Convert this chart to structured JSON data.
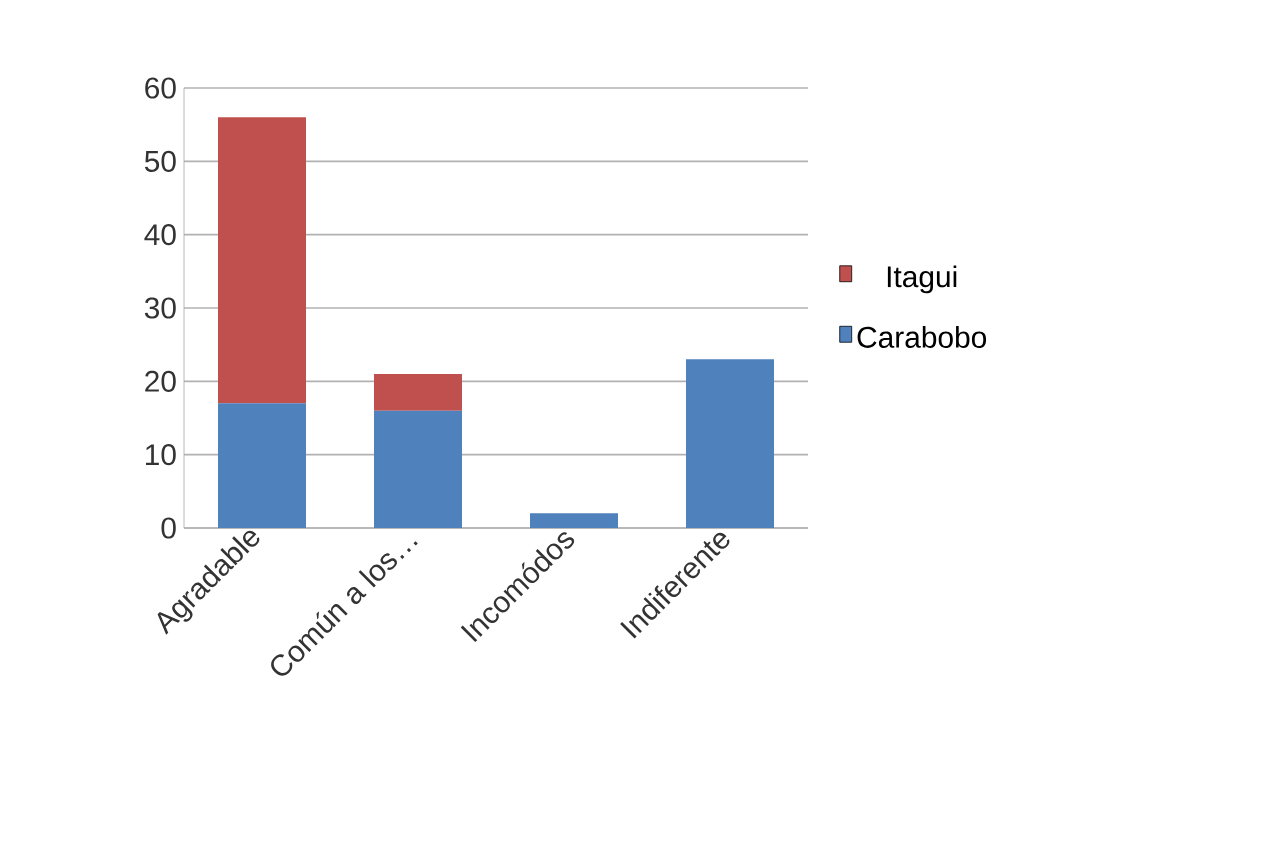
{
  "chart_data": {
    "type": "bar",
    "stacked": true,
    "categories": [
      "Agradable",
      "Común a los…",
      "Incomódos",
      "Indiferente"
    ],
    "series": [
      {
        "name": "Carabobo",
        "color": "#4f81bd",
        "values": [
          17,
          16,
          2,
          23
        ]
      },
      {
        "name": "Itagui",
        "color": "#c0504d",
        "values": [
          39,
          5,
          0,
          0
        ]
      }
    ],
    "ylim": [
      0,
      60
    ],
    "yticks": [
      0,
      10,
      20,
      30,
      40,
      50,
      60
    ],
    "grid": "y",
    "legend": "right"
  }
}
